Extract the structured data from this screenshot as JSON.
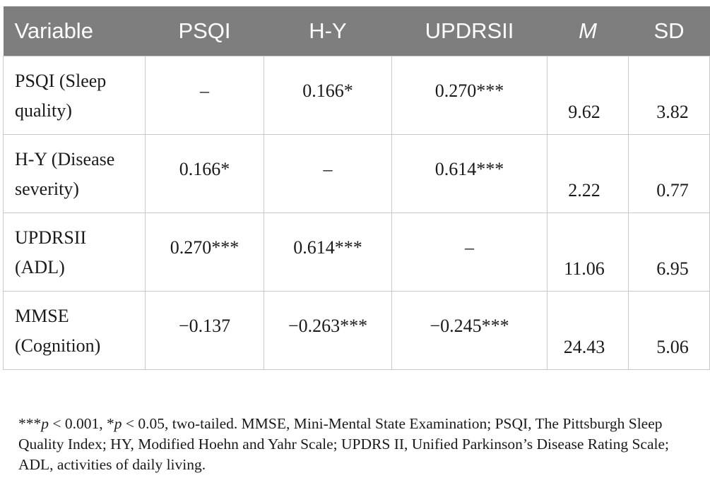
{
  "table": {
    "headers": [
      "Variable",
      "PSQI",
      "H-Y",
      "UPDRSII",
      "M",
      "SD"
    ],
    "rows": [
      {
        "variable_line1": "PSQI (Sleep",
        "variable_line2": "quality)",
        "psqi": "–",
        "hy": "0.166*",
        "updrsii": "0.270***",
        "m": "9.62",
        "sd": "3.82"
      },
      {
        "variable_line1": "H-Y (Disease",
        "variable_line2": "severity)",
        "psqi": "0.166*",
        "hy": "–",
        "updrsii": "0.614***",
        "m": "2.22",
        "sd": "0.77"
      },
      {
        "variable_line1": "UPDRSII",
        "variable_line2": "(ADL)",
        "psqi": "0.270***",
        "hy": "0.614***",
        "updrsii": "–",
        "m": "11.06",
        "sd": "6.95"
      },
      {
        "variable_line1": "MMSE",
        "variable_line2": "(Cognition)",
        "psqi": "−0.137",
        "hy": "−0.263***",
        "updrsii": "−0.245***",
        "m": "24.43",
        "sd": "5.06"
      }
    ]
  },
  "notes": {
    "prefix_a": "***",
    "p_symbol_a": "p",
    "threshold_a": " < 0.001, *",
    "p_symbol_b": "p",
    "rest": " < 0.05, two-tailed. MMSE, Mini-Mental State Examination; PSQI, The Pittsburgh Sleep Quality Index; HY, Modified Hoehn and Yahr Scale; UPDRS II, Unified Parkinson’s Disease Rating Scale; ADL, activities of daily living."
  }
}
